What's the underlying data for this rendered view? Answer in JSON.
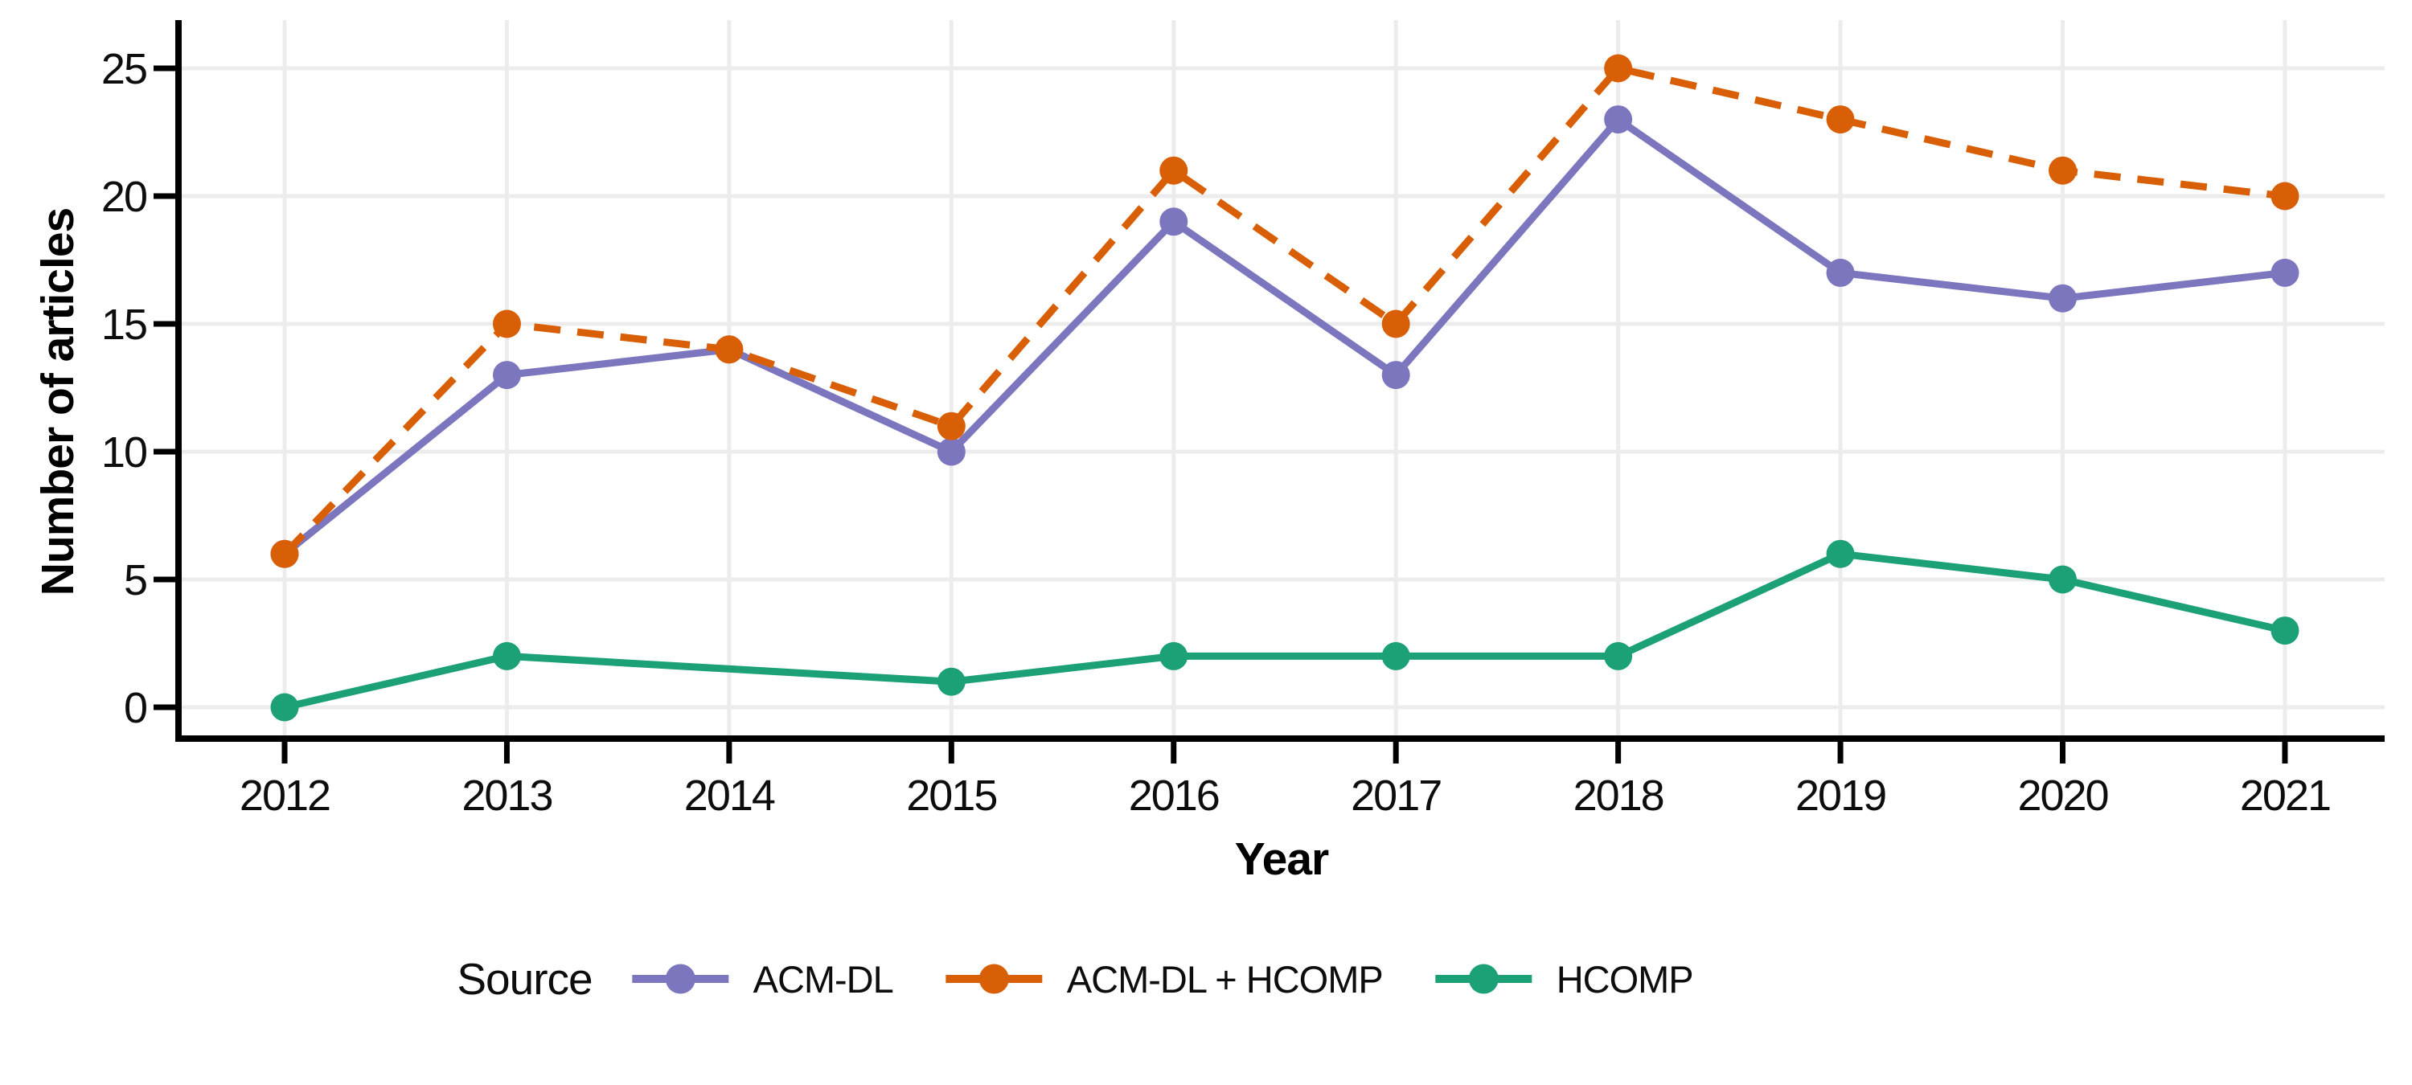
{
  "figure": {
    "background": "#ffffff",
    "text_color": "#0d0d0d",
    "axis_color": "#000000",
    "grid_color": "#ececec"
  },
  "chart_data": {
    "type": "line",
    "title": "",
    "xlabel": "Year",
    "ylabel": "Number of articles",
    "x": [
      2012,
      2013,
      2014,
      2015,
      2016,
      2017,
      2018,
      2019,
      2020,
      2021
    ],
    "x_tick_labels": [
      "2012",
      "2013",
      "2014",
      "2015",
      "2016",
      "2017",
      "2018",
      "2019",
      "2020",
      "2021"
    ],
    "y_ticks": [
      0,
      5,
      10,
      15,
      20,
      25
    ],
    "y_tick_labels": [
      "0",
      "5",
      "10",
      "15",
      "20",
      "25"
    ],
    "ylim": [
      0,
      25
    ],
    "grid": true,
    "legend_position": "bottom",
    "legend_title": "Source",
    "series": [
      {
        "name": "ACM-DL",
        "color": "#7b76bd",
        "dash": "solid",
        "marker": "circle",
        "values": [
          6,
          13,
          14,
          10,
          19,
          13,
          23,
          17,
          16,
          17
        ]
      },
      {
        "name": "ACM-DL + HCOMP",
        "color": "#d95f06",
        "dash": "dashed",
        "marker": "circle",
        "values": [
          6,
          15,
          14,
          11,
          21,
          15,
          25,
          23,
          21,
          20
        ]
      },
      {
        "name": "HCOMP",
        "color": "#1ca077",
        "dash": "solid",
        "marker": "circle",
        "values": [
          0,
          2,
          null,
          1,
          2,
          2,
          2,
          6,
          5,
          3
        ]
      }
    ]
  }
}
